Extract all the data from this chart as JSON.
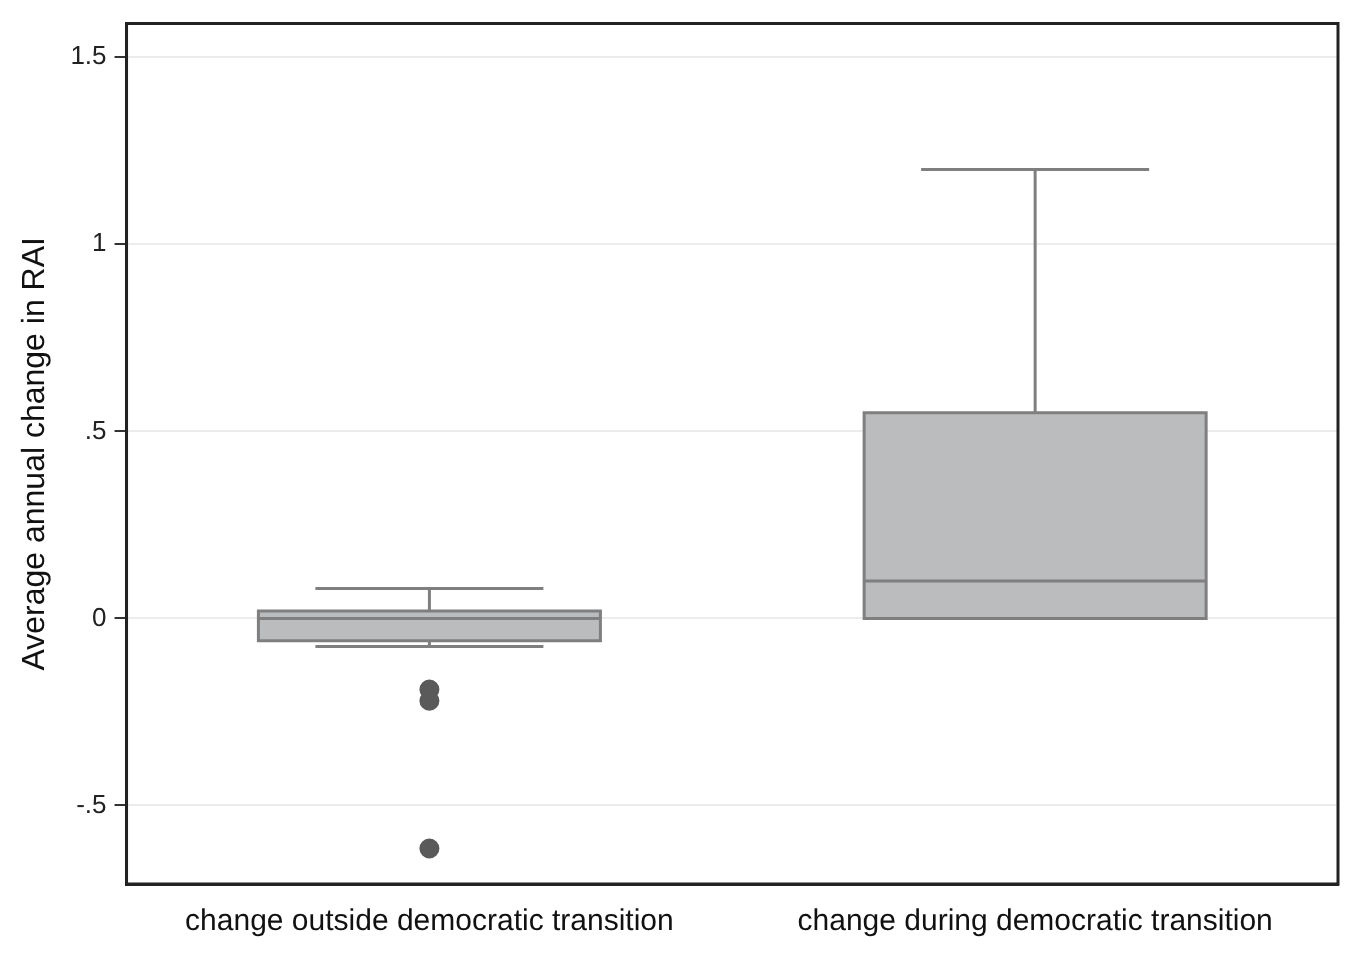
{
  "chart_data": {
    "type": "box",
    "ylabel": "Average annual change in RAI",
    "categories": [
      "change outside democratic transition",
      "change during democratic transition"
    ],
    "boxes": [
      {
        "low": -0.075,
        "q1": -0.06,
        "median": 0,
        "q3": 0.02,
        "high": 0.08,
        "outliers": [
          -0.19,
          -0.22,
          -0.615
        ]
      },
      {
        "low": 0,
        "q1": 0,
        "median": 0.1,
        "q3": 0.55,
        "high": 1.2
      }
    ],
    "color": "#bbbcbe",
    "ylim": [
      -0.71,
      1.59
    ],
    "yticks": [
      {
        "value": -0.5,
        "label": "-.5"
      },
      0,
      {
        "value": 0.5,
        "label": ".5"
      },
      1,
      1.5
    ],
    "grid": "y"
  }
}
